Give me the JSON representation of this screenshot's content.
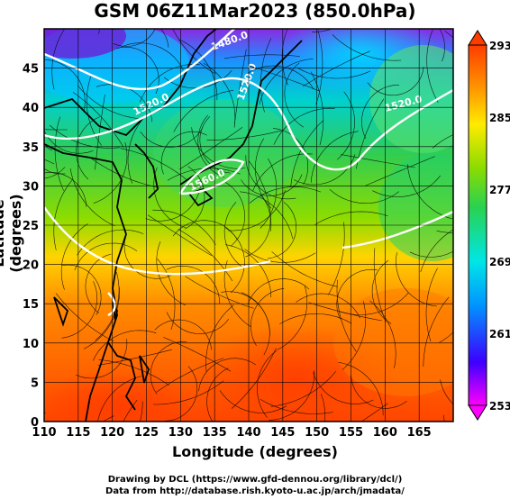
{
  "title": "GSM 06Z11Mar2023 (850.0hPa)",
  "x_axis": {
    "label": "Longitude (degrees)",
    "ticks": [
      "110",
      "115",
      "120",
      "125",
      "130",
      "135",
      "140",
      "145",
      "150",
      "155",
      "160",
      "165"
    ],
    "range": [
      110,
      170
    ]
  },
  "y_axis": {
    "label": "Latitude (degrees)",
    "ticks": [
      "0",
      "5",
      "10",
      "15",
      "20",
      "25",
      "30",
      "35",
      "40",
      "45"
    ],
    "range": [
      0,
      50
    ]
  },
  "colorbar": {
    "labels": [
      "293",
      "285",
      "277",
      "269",
      "261",
      "253"
    ],
    "range": [
      253,
      293
    ],
    "colors": [
      "#ff00ff",
      "#3c00ff",
      "#0096ff",
      "#00e6e6",
      "#28d250",
      "#8cdc00",
      "#ffeb00",
      "#ff9600",
      "#ff3c00"
    ]
  },
  "contour_labels": [
    "1480.0",
    "1520.0",
    "1520.0",
    "1520.0",
    "1560.0"
  ],
  "credits": {
    "line1": "Drawing by DCL (https://www.gfd-dennou.org/library/dcl/)",
    "line2": "Data from http://database.rish.kyoto-u.ac.jp/arch/jmadata/"
  }
}
